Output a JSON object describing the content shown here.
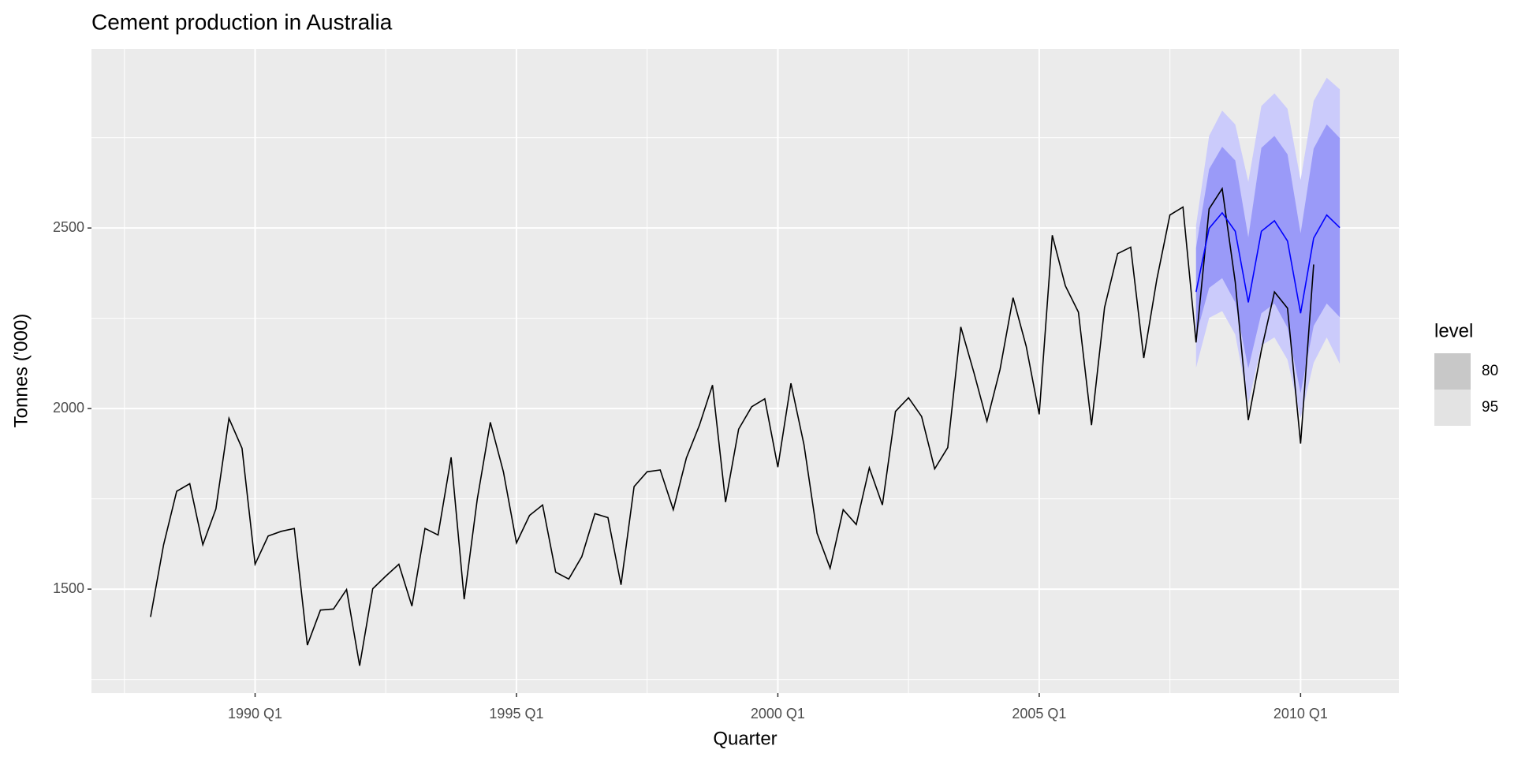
{
  "chart_data": {
    "type": "line",
    "title": "Cement production in Australia",
    "x_label": "Quarter",
    "y_label": "Tonnes ('000)",
    "x": [
      1988,
      1988.25,
      1988.5,
      1988.75,
      1989,
      1989.25,
      1989.5,
      1989.75,
      1990,
      1990.25,
      1990.5,
      1990.75,
      1991,
      1991.25,
      1991.5,
      1991.75,
      1992,
      1992.25,
      1992.5,
      1992.75,
      1993,
      1993.25,
      1993.5,
      1993.75,
      1994,
      1994.25,
      1994.5,
      1994.75,
      1995,
      1995.25,
      1995.5,
      1995.75,
      1996,
      1996.25,
      1996.5,
      1996.75,
      1997,
      1997.25,
      1997.5,
      1997.75,
      1998,
      1998.25,
      1998.5,
      1998.75,
      1999,
      1999.25,
      1999.5,
      1999.75,
      2000,
      2000.25,
      2000.5,
      2000.75,
      2001,
      2001.25,
      2001.5,
      2001.75,
      2002,
      2002.25,
      2002.5,
      2002.75,
      2003,
      2003.25,
      2003.5,
      2003.75,
      2004,
      2004.25,
      2004.5,
      2004.75,
      2005,
      2005.25,
      2005.5,
      2005.75,
      2006,
      2006.25,
      2006.5,
      2006.75,
      2007,
      2007.25,
      2007.5,
      2007.75,
      2008,
      2008.25,
      2008.5,
      2008.75,
      2009,
      2009.25,
      2009.5,
      2009.75,
      2010,
      2010.25
    ],
    "values": [
      1423,
      1623,
      1771,
      1792,
      1623,
      1722,
      1973,
      1890,
      1569,
      1647,
      1660,
      1668,
      1345,
      1442,
      1445,
      1499,
      1288,
      1501,
      1536,
      1569,
      1453,
      1668,
      1650,
      1865,
      1472,
      1749,
      1962,
      1825,
      1628,
      1704,
      1733,
      1547,
      1528,
      1590,
      1709,
      1698,
      1512,
      1784,
      1825,
      1830,
      1720,
      1863,
      1954,
      2065,
      1741,
      1943,
      2005,
      2027,
      1838,
      2070,
      1900,
      1655,
      1558,
      1720,
      1679,
      1836,
      1733,
      1992,
      2030,
      1978,
      1833,
      1892,
      2226,
      2100,
      1965,
      2108,
      2307,
      2173,
      1984,
      2480,
      2340,
      2267,
      1954,
      2280,
      2429,
      2447,
      2140,
      2358,
      2536,
      2558,
      2183,
      2553,
      2609,
      2350,
      1968,
      2162,
      2323,
      2278,
      1903,
      2399
    ],
    "color": "#000000",
    "forecast": {
      "x": [
        2008,
        2008.25,
        2008.5,
        2008.75,
        2009,
        2009.25,
        2009.5,
        2009.75,
        2010,
        2010.25,
        2010.5,
        2010.75
      ],
      "mean": [
        2323,
        2499,
        2542,
        2491,
        2294,
        2491,
        2520,
        2464,
        2264,
        2472,
        2536,
        2501
      ],
      "color": "#0000ff",
      "intervals": [
        {
          "name": "95",
          "color": "#cbcbfb",
          "legend_color": "#e3e3e3",
          "lower": [
            2113,
            2251,
            2270,
            2205,
            2013,
            2175,
            2197,
            2135,
            1973,
            2127,
            2197,
            2124
          ],
          "upper": [
            2507,
            2755,
            2825,
            2787,
            2628,
            2838,
            2873,
            2830,
            2633,
            2852,
            2916,
            2884
          ]
        },
        {
          "name": "80",
          "color": "#9a9af8",
          "legend_color": "#c8c8c8",
          "lower": [
            2202,
            2334,
            2361,
            2294,
            2111,
            2264,
            2291,
            2224,
            2043,
            2229,
            2291,
            2253
          ],
          "upper": [
            2445,
            2663,
            2725,
            2687,
            2474,
            2722,
            2755,
            2704,
            2485,
            2720,
            2787,
            2749
          ]
        }
      ]
    },
    "legend_title": "level",
    "xlim": [
      1986.87,
      2011.88
    ],
    "xticks": [
      {
        "value": 1990,
        "label": "1990 Q1"
      },
      {
        "value": 1995,
        "label": "1995 Q1"
      },
      {
        "value": 2000,
        "label": "2000 Q1"
      },
      {
        "value": 2005,
        "label": "2005 Q1"
      },
      {
        "value": 2010,
        "label": "2010 Q1"
      }
    ],
    "ylim": [
      1212,
      2996
    ],
    "yticks": [
      1500,
      2000,
      2500
    ],
    "grid": true
  }
}
